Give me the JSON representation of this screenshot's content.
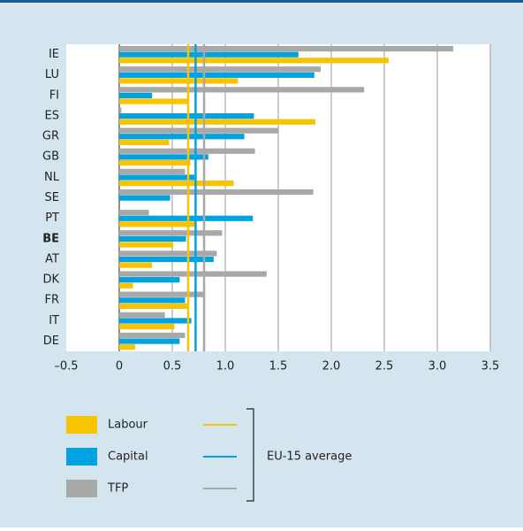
{
  "chart_data": {
    "type": "hbar",
    "categories": [
      "IE",
      "LU",
      "FI",
      "ES",
      "GR",
      "GB",
      "NL",
      "SE",
      "PT",
      "BE",
      "AT",
      "DK",
      "FR",
      "IT",
      "DE"
    ],
    "highlight_category": "BE",
    "series": [
      {
        "name": "TFP",
        "color": "#a8a8a8",
        "values": [
          3.15,
          1.9,
          2.31,
          0.02,
          1.5,
          1.28,
          0.62,
          1.83,
          0.28,
          0.97,
          0.92,
          1.39,
          0.8,
          0.43,
          0.62
        ],
        "average": 0.8
      },
      {
        "name": "Capital",
        "color": "#00a3e0",
        "values": [
          1.69,
          1.84,
          0.31,
          1.27,
          1.18,
          0.84,
          0.71,
          0.48,
          1.26,
          0.63,
          0.89,
          0.57,
          0.62,
          0.68,
          0.57
        ],
        "average": 0.72
      },
      {
        "name": "Labour",
        "color": "#f8c400",
        "values": [
          2.54,
          1.12,
          0.65,
          1.85,
          0.47,
          0.67,
          1.08,
          0,
          0.72,
          0.51,
          0.31,
          0.13,
          0.65,
          0.52,
          0.15
        ],
        "average": 0.65
      }
    ],
    "average_label": "EU-15 average",
    "xlim": [
      -0.5,
      3.5
    ],
    "xticks": [
      {
        "value": -0.5,
        "label": "–0.5"
      },
      0,
      0.5,
      {
        "value": 1,
        "label": "1.0"
      },
      1.5,
      {
        "value": 2,
        "label": "2.0"
      },
      2.5,
      {
        "value": 3,
        "label": "3.0"
      },
      3.5
    ],
    "grid": true
  }
}
